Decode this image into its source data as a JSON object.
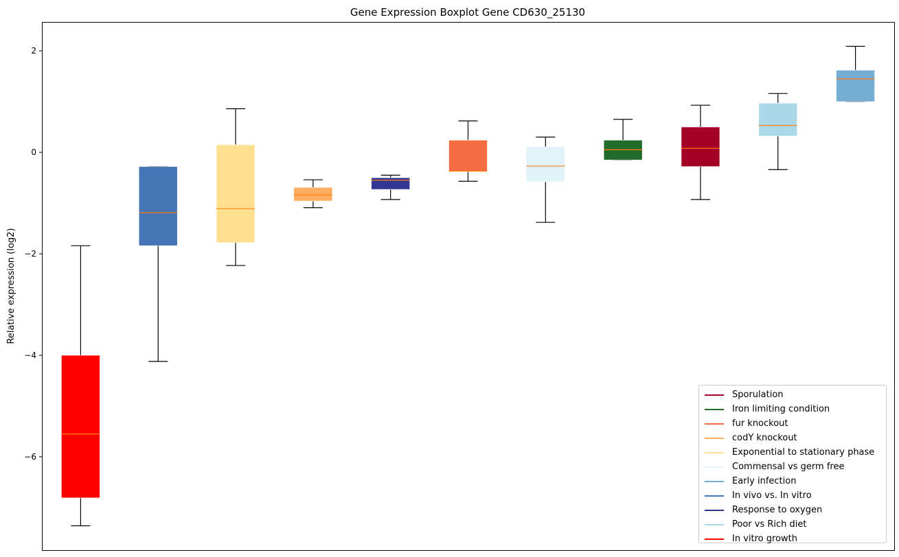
{
  "chart_data": {
    "type": "boxplot",
    "title": "Gene Expression Boxplot Gene CD630_25130",
    "xlabel": "",
    "ylabel": "Relative expression (log2)",
    "ylim": [
      -7.84,
      2.57
    ],
    "yticks": [
      2,
      0,
      -2,
      -4,
      -6
    ],
    "ytick_labels": [
      "2",
      "0",
      "−2",
      "−4",
      "−6"
    ],
    "grid": false,
    "legend_position": "lower-right",
    "median_color": "#ff7f0e",
    "boxes": [
      {
        "name": "In vitro growth",
        "color": "#ff0000",
        "whislo": -7.36,
        "q1": -6.81,
        "med": -5.55,
        "q3": -4.0,
        "whishi": -1.84
      },
      {
        "name": "In vivo vs. In vitro",
        "color": "#4575b4",
        "whislo": -4.12,
        "q1": -1.84,
        "med": -1.19,
        "q3": -0.28,
        "whishi": -0.28
      },
      {
        "name": "Exponential to stationary phase",
        "color": "#fee090",
        "whislo": -2.23,
        "q1": -1.78,
        "med": -1.11,
        "q3": 0.15,
        "whishi": 0.86
      },
      {
        "name": "codY knockout",
        "color": "#fdae61",
        "whislo": -1.09,
        "q1": -0.96,
        "med": -0.84,
        "q3": -0.69,
        "whishi": -0.54
      },
      {
        "name": "Response to oxygen",
        "color": "#313695",
        "whislo": -0.93,
        "q1": -0.73,
        "med": -0.55,
        "q3": -0.5,
        "whishi": -0.45
      },
      {
        "name": "fur knockout",
        "color": "#f46d43",
        "whislo": -0.57,
        "q1": -0.38,
        "med": -0.37,
        "q3": 0.24,
        "whishi": 0.62
      },
      {
        "name": "Commensal vs germ free",
        "color": "#e0f3f8",
        "whislo": -1.38,
        "q1": -0.58,
        "med": -0.27,
        "q3": 0.11,
        "whishi": 0.3
      },
      {
        "name": "Iron limiting condition",
        "color": "#216b2a",
        "whislo": -0.15,
        "q1": -0.15,
        "med": 0.05,
        "q3": 0.24,
        "whishi": 0.65
      },
      {
        "name": "Sporulation",
        "color": "#a50026",
        "whislo": -0.93,
        "q1": -0.28,
        "med": 0.08,
        "q3": 0.5,
        "whishi": 0.93
      },
      {
        "name": "Poor vs Rich diet",
        "color": "#abd9e9",
        "whislo": -0.34,
        "q1": 0.32,
        "med": 0.53,
        "q3": 0.97,
        "whishi": 1.16
      },
      {
        "name": "Early infection",
        "color": "#74add1",
        "whislo": 1.0,
        "q1": 1.0,
        "med": 1.45,
        "q3": 1.62,
        "whishi": 2.09
      }
    ],
    "legend": [
      {
        "label": "Sporulation",
        "color": "#a50026"
      },
      {
        "label": "Iron limiting condition",
        "color": "#216b2a"
      },
      {
        "label": "fur knockout",
        "color": "#f46d43"
      },
      {
        "label": "codY knockout",
        "color": "#fdae61"
      },
      {
        "label": "Exponential to stationary phase",
        "color": "#fee090"
      },
      {
        "label": "Commensal vs germ free",
        "color": "#e0f3f8"
      },
      {
        "label": "Early infection",
        "color": "#74add1"
      },
      {
        "label": "In vivo vs. In vitro",
        "color": "#4575b4"
      },
      {
        "label": "Response to oxygen",
        "color": "#313695"
      },
      {
        "label": "Poor vs Rich diet",
        "color": "#abd9e9"
      },
      {
        "label": "In vitro growth",
        "color": "#ff0000"
      }
    ]
  }
}
